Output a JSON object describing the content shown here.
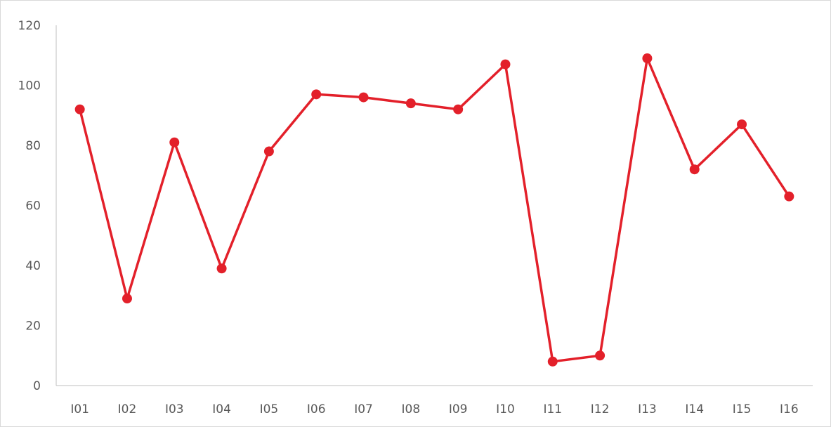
{
  "chart_data": {
    "type": "line",
    "categories": [
      "I01",
      "I02",
      "I03",
      "I04",
      "I05",
      "I06",
      "I07",
      "I08",
      "I09",
      "I10",
      "I11",
      "I12",
      "I13",
      "I14",
      "I15",
      "I16"
    ],
    "series": [
      {
        "values": [
          92,
          29,
          81,
          39,
          78,
          97,
          96,
          94,
          92,
          107,
          8,
          10,
          109,
          72,
          87,
          63
        ]
      }
    ],
    "title": "",
    "xlabel": "",
    "ylabel": "",
    "ylim": [
      0,
      120
    ],
    "yticks": [
      "0",
      "20",
      "40",
      "60",
      "80",
      "100",
      "120"
    ],
    "grid": false,
    "legend": "none",
    "line_color": "#e3202a",
    "axis_color": "#bfbfbf",
    "label_color": "#595959"
  }
}
